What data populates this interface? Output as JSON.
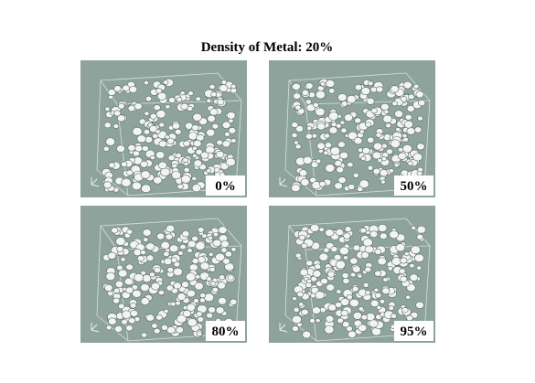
{
  "figure": {
    "title": "Density of Metal: 20%",
    "panels": [
      {
        "label": "0%"
      },
      {
        "label": "50%"
      },
      {
        "label": "80%"
      },
      {
        "label": "95%"
      }
    ]
  }
}
